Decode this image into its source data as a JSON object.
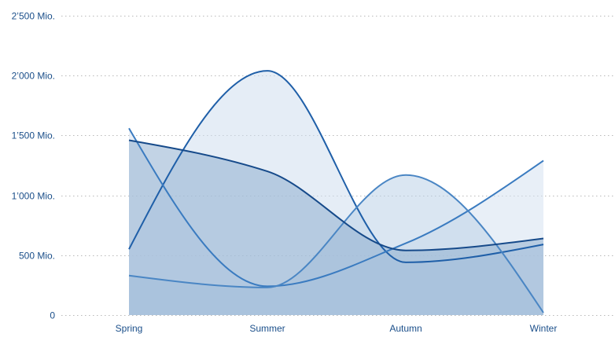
{
  "chart_data": {
    "type": "area",
    "title": "",
    "xlabel": "",
    "ylabel": "",
    "categories": [
      "Spring",
      "Summer",
      "Autumn",
      "Winter"
    ],
    "ylim": [
      0,
      2500000000
    ],
    "y_ticks": [
      {
        "value": 0,
        "label": "0"
      },
      {
        "value": 500000000,
        "label": "500 Mio."
      },
      {
        "value": 1000000000,
        "label": "1’000 Mio."
      },
      {
        "value": 1500000000,
        "label": "1’500 Mio."
      },
      {
        "value": 2000000000,
        "label": "2’000 Mio."
      },
      {
        "value": 2500000000,
        "label": "2’500 Mio."
      }
    ],
    "grid": true,
    "curve": "smooth",
    "series": [
      {
        "values": [
          550000000,
          2040000000,
          440000000,
          590000000
        ],
        "fill": "#cfdeee",
        "stroke": "#1f5fa8"
      },
      {
        "values": [
          1560000000,
          240000000,
          600000000,
          1290000000
        ],
        "fill": "#d6e2f0",
        "stroke": "#3a7bc0"
      },
      {
        "values": [
          330000000,
          230000000,
          1170000000,
          20000000
        ],
        "fill": "#bcd2e8",
        "stroke": "#4a86c4"
      },
      {
        "values": [
          1460000000,
          1200000000,
          540000000,
          640000000
        ],
        "fill": "#8fafcf",
        "stroke": "#164a8a"
      }
    ]
  }
}
